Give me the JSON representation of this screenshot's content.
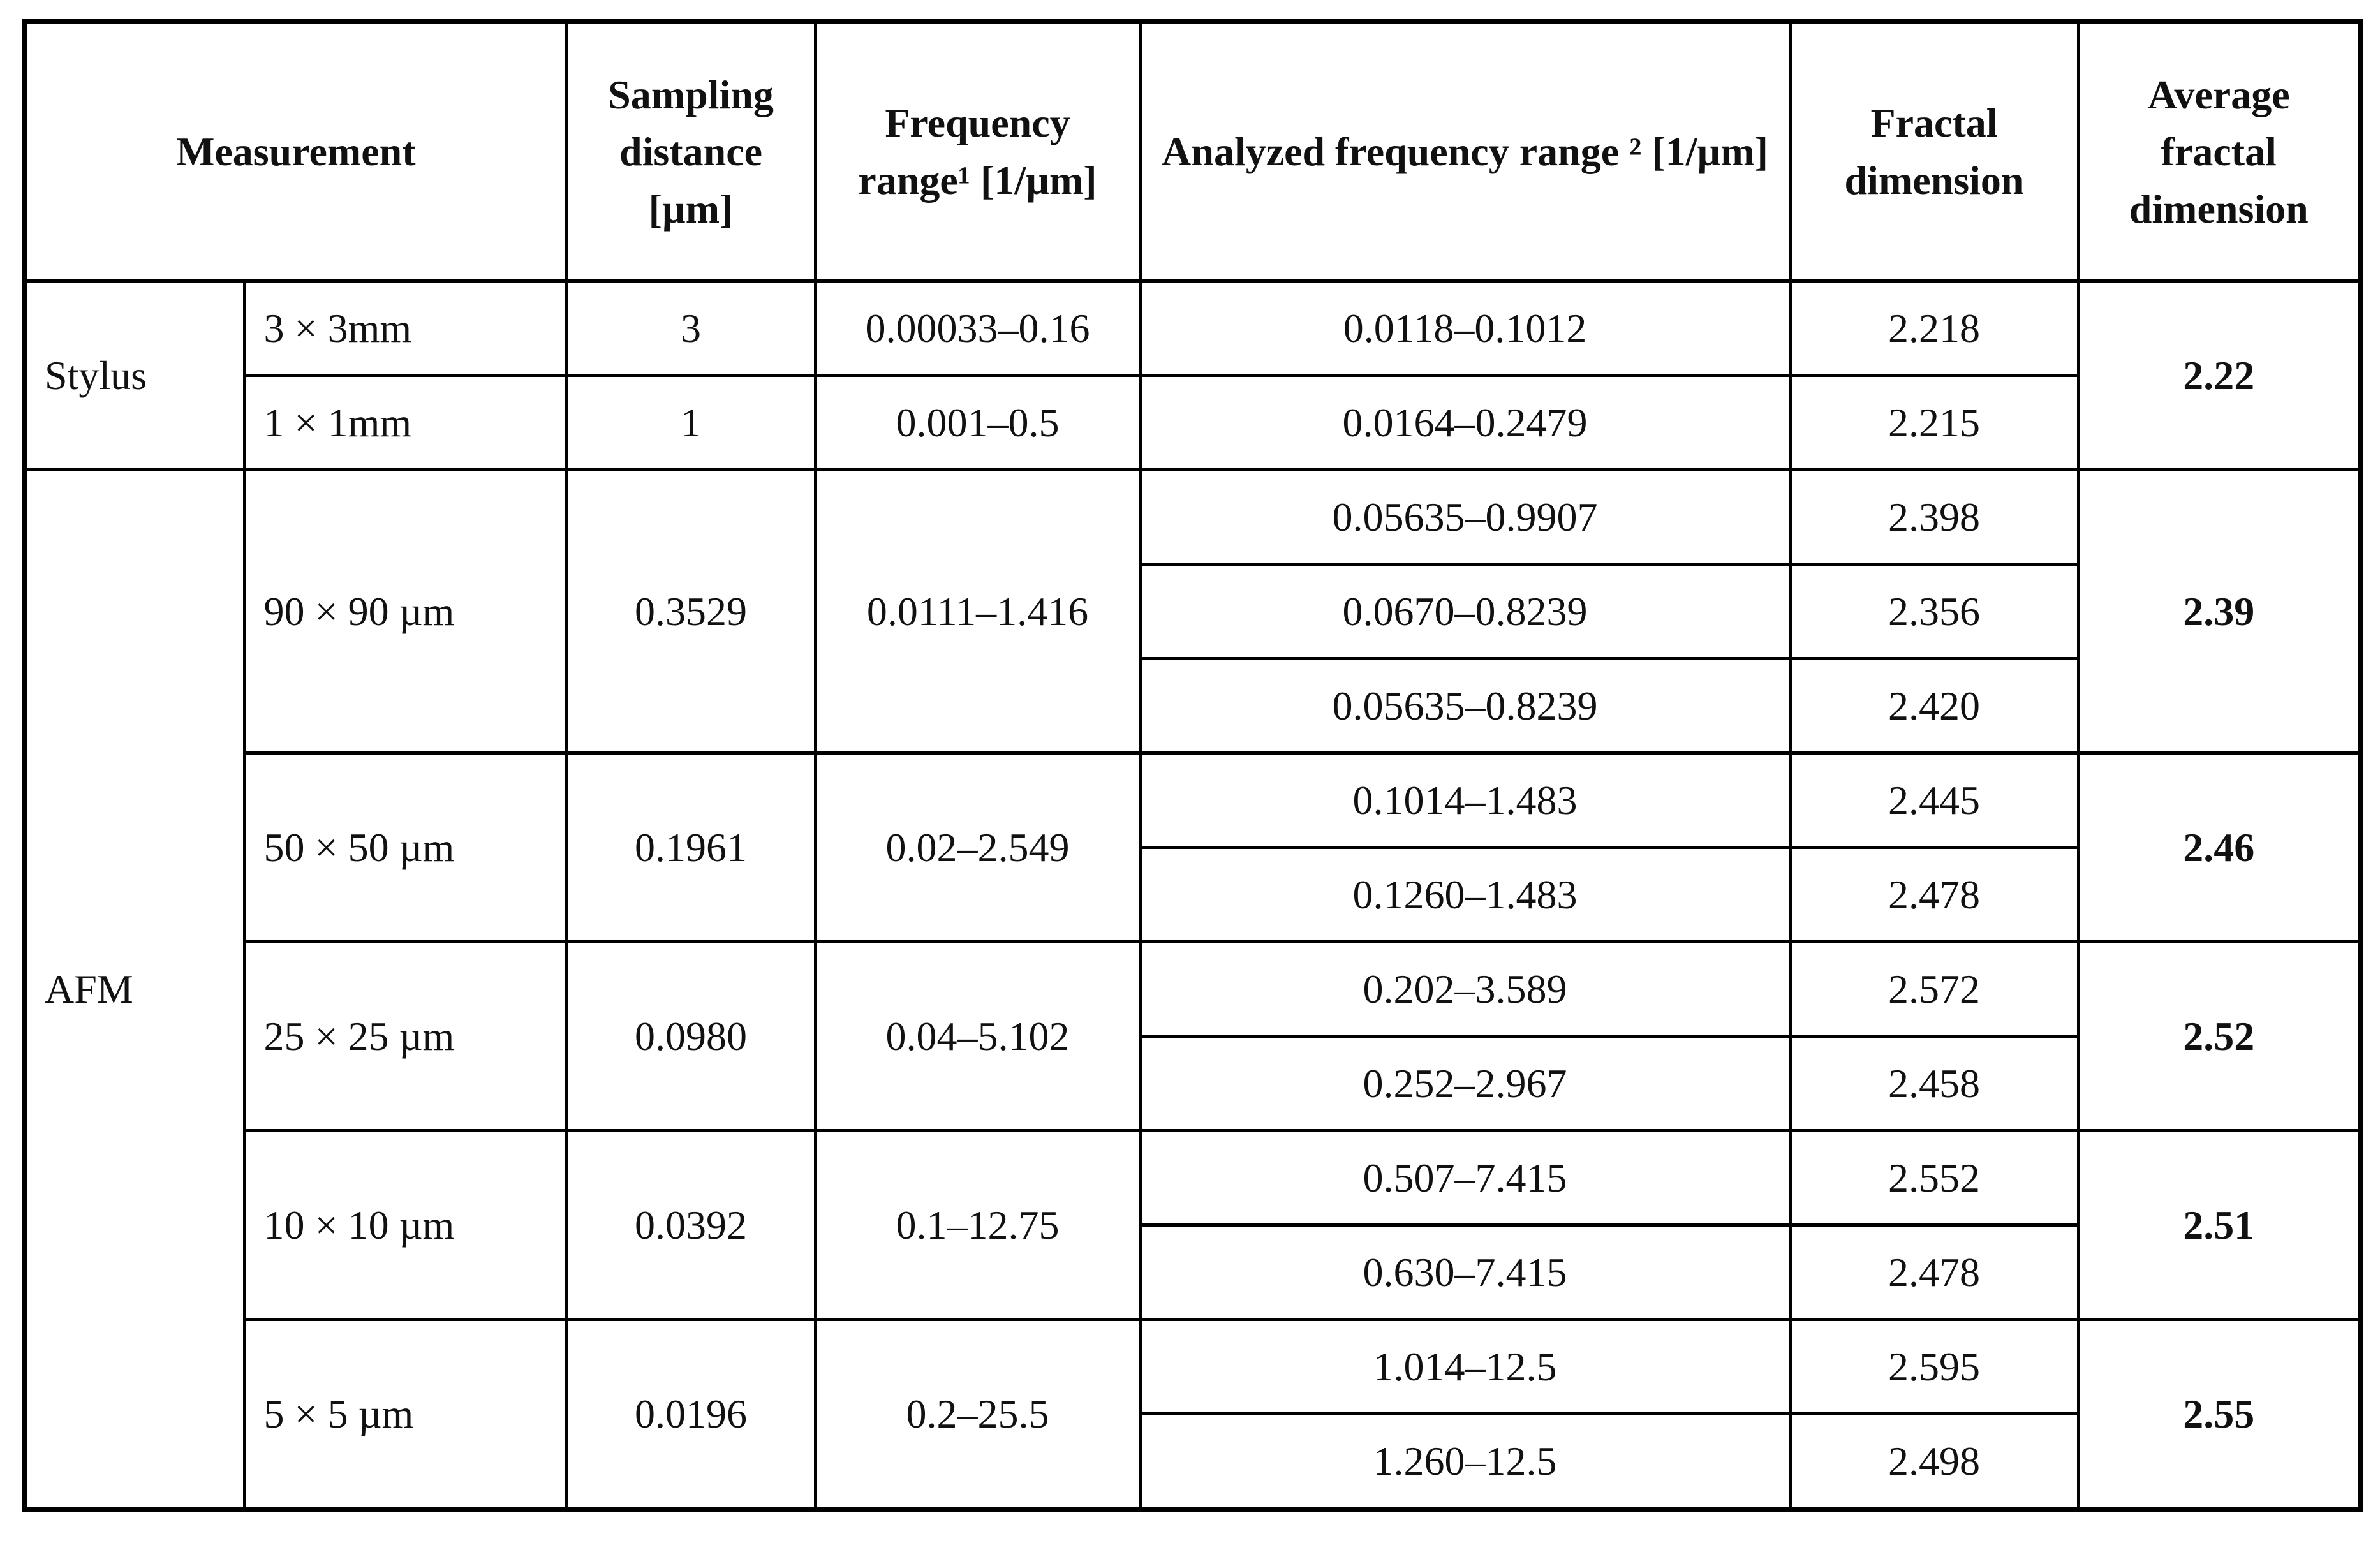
{
  "table": {
    "header": [
      "Measurement",
      "Sampling distance [µm]",
      "Frequency range¹ [1/µm]",
      "Analyzed frequency range ² [1/µm]",
      "Fractal dimension",
      "Average fractal dimension"
    ],
    "groups": [
      {
        "method": "Stylus",
        "blocks": [
          {
            "average": "2.22",
            "sizes": [
              {
                "size": "3 × 3mm",
                "sampling": "3",
                "frequency": "0.00033–0.16",
                "analyses": [
                  {
                    "range": "0.0118–0.1012",
                    "fd": "2.218"
                  }
                ]
              },
              {
                "size": "1 × 1mm",
                "sampling": "1",
                "frequency": "0.001–0.5",
                "analyses": [
                  {
                    "range": "0.0164–0.2479",
                    "fd": "2.215"
                  }
                ]
              }
            ]
          }
        ]
      },
      {
        "method": "AFM",
        "blocks": [
          {
            "average": "2.39",
            "sizes": [
              {
                "size": "90 × 90 µm",
                "sampling": "0.3529",
                "frequency": "0.0111–1.416",
                "analyses": [
                  {
                    "range": "0.05635–0.9907",
                    "fd": "2.398"
                  },
                  {
                    "range": "0.0670–0.8239",
                    "fd": "2.356"
                  },
                  {
                    "range": "0.05635–0.8239",
                    "fd": "2.420"
                  }
                ]
              }
            ]
          },
          {
            "average": "2.46",
            "sizes": [
              {
                "size": "50 × 50 µm",
                "sampling": "0.1961",
                "frequency": "0.02–2.549",
                "analyses": [
                  {
                    "range": "0.1014–1.483",
                    "fd": "2.445"
                  },
                  {
                    "range": "0.1260–1.483",
                    "fd": "2.478"
                  }
                ]
              }
            ]
          },
          {
            "average": "2.52",
            "sizes": [
              {
                "size": "25 × 25 µm",
                "sampling": "0.0980",
                "frequency": "0.04–5.102",
                "analyses": [
                  {
                    "range": "0.202–3.589",
                    "fd": "2.572"
                  },
                  {
                    "range": "0.252–2.967",
                    "fd": "2.458"
                  }
                ]
              }
            ]
          },
          {
            "average": "2.51",
            "sizes": [
              {
                "size": "10 × 10 µm",
                "sampling": "0.0392",
                "frequency": "0.1–12.75",
                "analyses": [
                  {
                    "range": "0.507–7.415",
                    "fd": "2.552"
                  },
                  {
                    "range": "0.630–7.415",
                    "fd": "2.478"
                  }
                ]
              }
            ]
          },
          {
            "average": "2.55",
            "sizes": [
              {
                "size": "5 × 5 µm",
                "sampling": "0.0196",
                "frequency": "0.2–25.5",
                "analyses": [
                  {
                    "range": "1.014–12.5",
                    "fd": "2.595"
                  },
                  {
                    "range": "1.260–12.5",
                    "fd": "2.498"
                  }
                ]
              }
            ]
          }
        ]
      }
    ]
  }
}
